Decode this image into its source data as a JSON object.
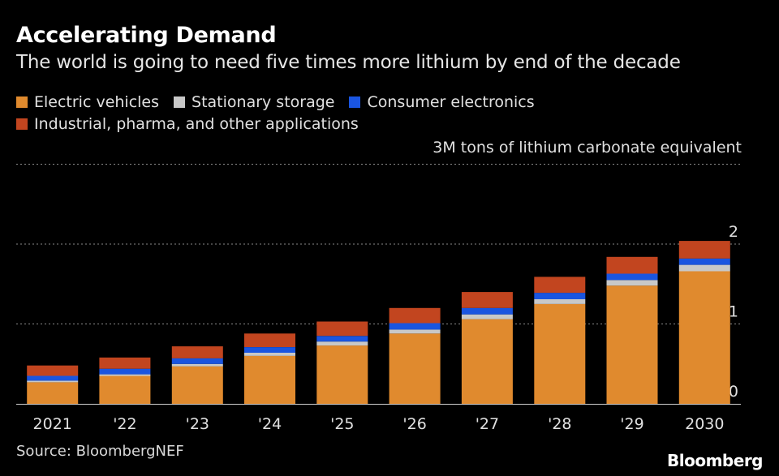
{
  "header": {
    "title": "Accelerating Demand",
    "subtitle": "The world is going to need five times more lithium by end of the decade"
  },
  "legend": [
    {
      "label": "Electric vehicles",
      "color": "#e08a2e"
    },
    {
      "label": "Stationary storage",
      "color": "#c8c8c8"
    },
    {
      "label": "Consumer electronics",
      "color": "#1a55e0"
    },
    {
      "label": "Industrial, pharma, and other applications",
      "color": "#c2451f"
    }
  ],
  "unit_label": "3M tons of lithium carbonate equivalent",
  "footer": {
    "source": "Source: BloombergNEF",
    "brand": "Bloomberg"
  },
  "chart_data": {
    "type": "bar",
    "stacked": true,
    "title": "Accelerating Demand",
    "subtitle": "The world is going to need five times more lithium by end of the decade",
    "categories": [
      "2021",
      "'22",
      "'23",
      "'24",
      "'25",
      "'26",
      "'27",
      "'28",
      "'29",
      "2030"
    ],
    "series": [
      {
        "name": "Electric vehicles",
        "color": "#e08a2e",
        "values": [
          0.27,
          0.35,
          0.47,
          0.6,
          0.73,
          0.88,
          1.06,
          1.25,
          1.48,
          1.66
        ]
      },
      {
        "name": "Stationary storage",
        "color": "#c8c8c8",
        "values": [
          0.02,
          0.02,
          0.03,
          0.04,
          0.05,
          0.05,
          0.06,
          0.06,
          0.07,
          0.08
        ]
      },
      {
        "name": "Consumer electronics",
        "color": "#1a55e0",
        "values": [
          0.06,
          0.07,
          0.07,
          0.07,
          0.07,
          0.08,
          0.08,
          0.08,
          0.08,
          0.08
        ]
      },
      {
        "name": "Industrial, pharma, and other applications",
        "color": "#c2451f",
        "values": [
          0.13,
          0.14,
          0.15,
          0.17,
          0.18,
          0.19,
          0.2,
          0.2,
          0.21,
          0.22
        ]
      }
    ],
    "yticks": [
      0,
      1,
      2,
      3
    ],
    "ytick_labels": [
      "0",
      "1",
      "2",
      ""
    ],
    "ylabel": "3M tons of lithium carbonate equivalent",
    "ylim": [
      0,
      3
    ],
    "grid": true,
    "legend_position": "top-left"
  }
}
